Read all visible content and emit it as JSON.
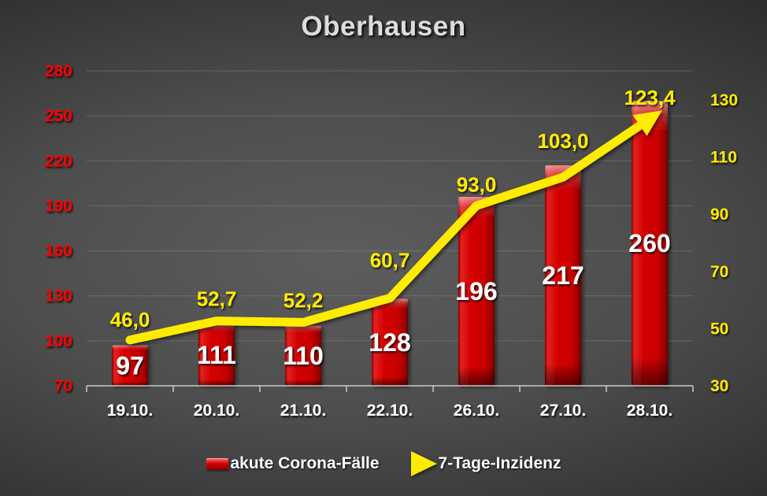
{
  "title": "Oberhausen",
  "colors": {
    "bar_main": "#d20404",
    "bar_light": "#ef2a2a",
    "bar_dark": "#6f0000",
    "line": "#ffec00",
    "left_axis_text": "#ff0000",
    "right_axis_text": "#ffe800",
    "bar_value_text": "#ffffff",
    "x_axis_text": "#ffffff",
    "gridline": "#8a8a8a",
    "axis_line": "#c9c9c9",
    "title_text": "#dcdcdc"
  },
  "chart_data": {
    "type": "combo",
    "title": "Oberhausen",
    "categories": [
      "19.10.",
      "20.10.",
      "21.10.",
      "22.10.",
      "26.10.",
      "27.10.",
      "28.10."
    ],
    "series": [
      {
        "name": "akute Corona-Fälle",
        "type": "bar",
        "axis": "left",
        "values": [
          97,
          111,
          110,
          128,
          196,
          217,
          260
        ],
        "labels": [
          "97",
          "111",
          "110",
          "128",
          "196",
          "217",
          "260"
        ]
      },
      {
        "name": "7-Tage-Inzidenz",
        "type": "line",
        "axis": "right",
        "values": [
          46.0,
          52.7,
          52.2,
          60.7,
          93.0,
          103.0,
          123.4
        ],
        "labels": [
          "46,0",
          "52,7",
          "52,2",
          "60,7",
          "93,0",
          "103,0",
          "123,4"
        ]
      }
    ],
    "left_axis": {
      "min": 70,
      "max": 280,
      "step": 30,
      "ticks": [
        70,
        100,
        130,
        160,
        190,
        220,
        250,
        280
      ]
    },
    "right_axis": {
      "min": 30,
      "max": 130,
      "step": 20,
      "ticks": [
        30,
        50,
        70,
        90,
        110,
        130
      ]
    },
    "grid": true,
    "legend_position": "bottom",
    "line_end_marker": "arrow"
  }
}
